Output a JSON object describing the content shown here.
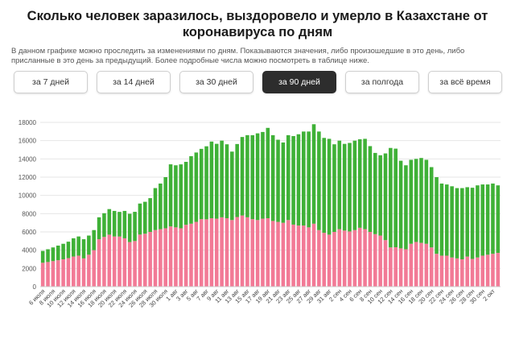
{
  "page": {
    "title": "Сколько человек заразилось, выздоровело и умерло в Казахстане от коронавируса по дням",
    "description": "В данном графике можно проследить за изменениями по дням. Показываются значения, либо произошедшие в это день, либо присланные в это день за предыдущий. Более подробные числа можно посмотреть в таблице ниже."
  },
  "tabs": [
    {
      "label": "за 7 дней",
      "active": false
    },
    {
      "label": "за 14 дней",
      "active": false
    },
    {
      "label": "за 30 дней",
      "active": false
    },
    {
      "label": "за 90 дней",
      "active": true
    },
    {
      "label": "за полгода",
      "active": false
    },
    {
      "label": "за всё время",
      "active": false
    }
  ],
  "colors": {
    "infected": "#f27a96",
    "recovered": "#3fb137",
    "active_tab": "#2d2d2d",
    "grid": "#e6e6e6"
  },
  "chart_data": {
    "type": "bar",
    "stacked": true,
    "ylim": [
      0,
      18000
    ],
    "yticks": [
      0,
      2000,
      4000,
      6000,
      8000,
      10000,
      12000,
      14000,
      16000,
      18000
    ],
    "grid": true,
    "categories": [
      "6 июля",
      "7 июля",
      "8 июля",
      "9 июля",
      "10 июля",
      "11 июля",
      "12 июля",
      "13 июля",
      "14 июля",
      "15 июля",
      "16 июля",
      "17 июля",
      "18 июля",
      "19 июля",
      "20 июля",
      "21 июля",
      "22 июля",
      "23 июля",
      "24 июля",
      "25 июля",
      "26 июля",
      "27 июля",
      "28 июля",
      "29 июля",
      "30 июля",
      "31 июля",
      "1 авг",
      "2 авг",
      "3 авг",
      "4 авг",
      "5 авг",
      "6 авг",
      "7 авг",
      "8 авг",
      "9 авг",
      "10 авг",
      "11 авг",
      "12 авг",
      "13 авг",
      "14 авг",
      "15 авг",
      "16 авг",
      "17 авг",
      "18 авг",
      "19 авг",
      "20 авг",
      "21 авг",
      "22 авг",
      "23 авг",
      "24 авг",
      "25 авг",
      "26 авг",
      "27 авг",
      "28 авг",
      "29 авг",
      "30 авг",
      "31 авг",
      "1 сен",
      "2 сен",
      "3 сен",
      "4 сен",
      "5 сен",
      "6 сен",
      "7 сен",
      "8 сен",
      "9 сен",
      "10 сен",
      "11 сен",
      "12 сен",
      "13 сен",
      "14 сен",
      "15 сен",
      "16 сен",
      "17 сен",
      "18 сен",
      "19 сен",
      "20 сен",
      "21 сен",
      "22 сен",
      "23 сен",
      "24 сен",
      "25 сен",
      "26 сен",
      "27 сен",
      "28 сен",
      "29 сен",
      "30 сен",
      "1 окт",
      "2 окт",
      "3 окт"
    ],
    "xtick_labels": [
      "6 июля",
      "8 июля",
      "10 июля",
      "12 июля",
      "14 июля",
      "16 июля",
      "18 июля",
      "20 июля",
      "22 июля",
      "24 июля",
      "26 июля",
      "28 июля",
      "30 июля",
      "1 авг",
      "3 авг",
      "5 авг",
      "7 авг",
      "9 авг",
      "11 авг",
      "13 авг",
      "15 авг",
      "17 авг",
      "19 авг",
      "21 авг",
      "23 авг",
      "25 авг",
      "27 авг",
      "29 авг",
      "31 авг",
      "2 сен",
      "4 сен",
      "6 сен",
      "8 сен",
      "10 сен",
      "12 сен",
      "14 сен",
      "16 сен",
      "18 сен",
      "20 сен",
      "22 сен",
      "24 сен",
      "26 сен",
      "28 сен",
      "30 сен",
      "2 окт"
    ],
    "series": [
      {
        "color": "#f27a96",
        "values": [
          2618,
          2700,
          2800,
          2900,
          3000,
          3130,
          3300,
          3400,
          3099,
          3500,
          4000,
          5200,
          5448,
          5700,
          5500,
          5493,
          5300,
          4889,
          5000,
          5708,
          5800,
          6000,
          6201,
          6300,
          6400,
          6605,
          6500,
          6400,
          6777,
          6900,
          7100,
          7400,
          7382,
          7500,
          7451,
          7600,
          7500,
          7300,
          7630,
          7800,
          7602,
          7400,
          7300,
          7450,
          7500,
          7200,
          7100,
          7000,
          7300,
          6800,
          6700,
          6698,
          6500,
          6900,
          6200,
          5900,
          5700,
          6000,
          6300,
          6146,
          6050,
          6200,
          6453,
          6300,
          6000,
          5755,
          5600,
          5100,
          4300,
          4324,
          4200,
          4100,
          4700,
          4900,
          4800,
          4700,
          4300,
          3600,
          3400,
          3397,
          3200,
          3100,
          3000,
          3300,
          3039,
          3200,
          3400,
          3500,
          3600,
          3700
        ]
      },
      {
        "color": "#3fb137",
        "values": [
          1300,
          1400,
          1500,
          1600,
          1700,
          1800,
          2000,
          2100,
          2100,
          2100,
          2200,
          2400,
          2600,
          2800,
          2800,
          2700,
          3000,
          3100,
          3200,
          3400,
          3500,
          3700,
          4600,
          5000,
          5600,
          6800,
          6800,
          7000,
          6900,
          7400,
          7600,
          7700,
          8000,
          8400,
          8200,
          8400,
          8100,
          7500,
          8000,
          8600,
          9000,
          9200,
          9500,
          9500,
          9900,
          9400,
          9000,
          8800,
          9300,
          9700,
          10000,
          10300,
          10500,
          10900,
          10800,
          10400,
          10500,
          9600,
          9700,
          9500,
          9700,
          9800,
          9700,
          9900,
          9400,
          8900,
          8800,
          9500,
          10900,
          10800,
          9600,
          9200,
          9200,
          9100,
          9300,
          9200,
          8800,
          8400,
          7900,
          7800,
          7800,
          7700,
          7800,
          7600,
          7800,
          7900,
          7800,
          7700,
          7700,
          7400
        ]
      }
    ]
  }
}
